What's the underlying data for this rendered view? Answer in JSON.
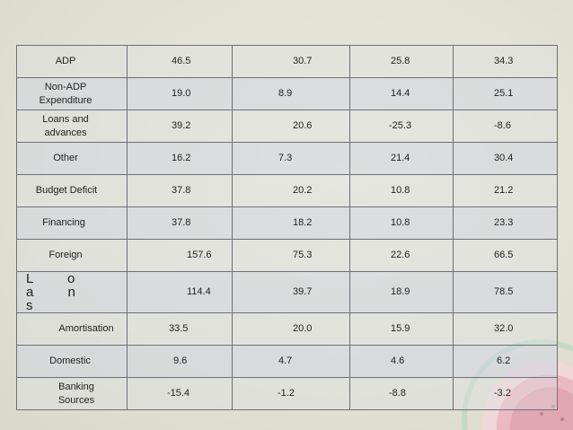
{
  "table": {
    "rows": [
      {
        "label": "ADP",
        "values": [
          "46.5",
          "30.7",
          "25.8",
          "34.3"
        ]
      },
      {
        "label": "Non-ADP Expenditure",
        "values": [
          "19.0",
          "8.9",
          "14.4",
          "25.1"
        ]
      },
      {
        "label": "Loans and advances",
        "values": [
          "39.2",
          "20.6",
          "-25.3",
          "-8.6"
        ]
      },
      {
        "label": "Other",
        "values": [
          "16.2",
          "7.3",
          "21.4",
          "30.4"
        ]
      },
      {
        "label": "Budget Deficit",
        "values": [
          "37.8",
          "20.2",
          "10.8",
          "21.2"
        ]
      },
      {
        "label": "Financing",
        "values": [
          "37.8",
          "18.2",
          "10.8",
          "23.3"
        ]
      },
      {
        "label": "Foreign",
        "values": [
          "157.6",
          "75.3",
          "22.6",
          "66.5"
        ]
      },
      {
        "label": "L o a n s",
        "values": [
          "114.4",
          "39.7",
          "18.9",
          "78.5"
        ]
      },
      {
        "label": "Amortisation",
        "values": [
          "33.5",
          "20.0",
          "15.9",
          "32.0"
        ]
      },
      {
        "label": "Domestic",
        "values": [
          "9.6",
          "4.7",
          "4.6",
          "6.2"
        ]
      },
      {
        "label": "Banking Sources",
        "values": [
          "-15.4",
          "-1.2",
          "-8.8",
          "-3.2"
        ]
      }
    ]
  }
}
